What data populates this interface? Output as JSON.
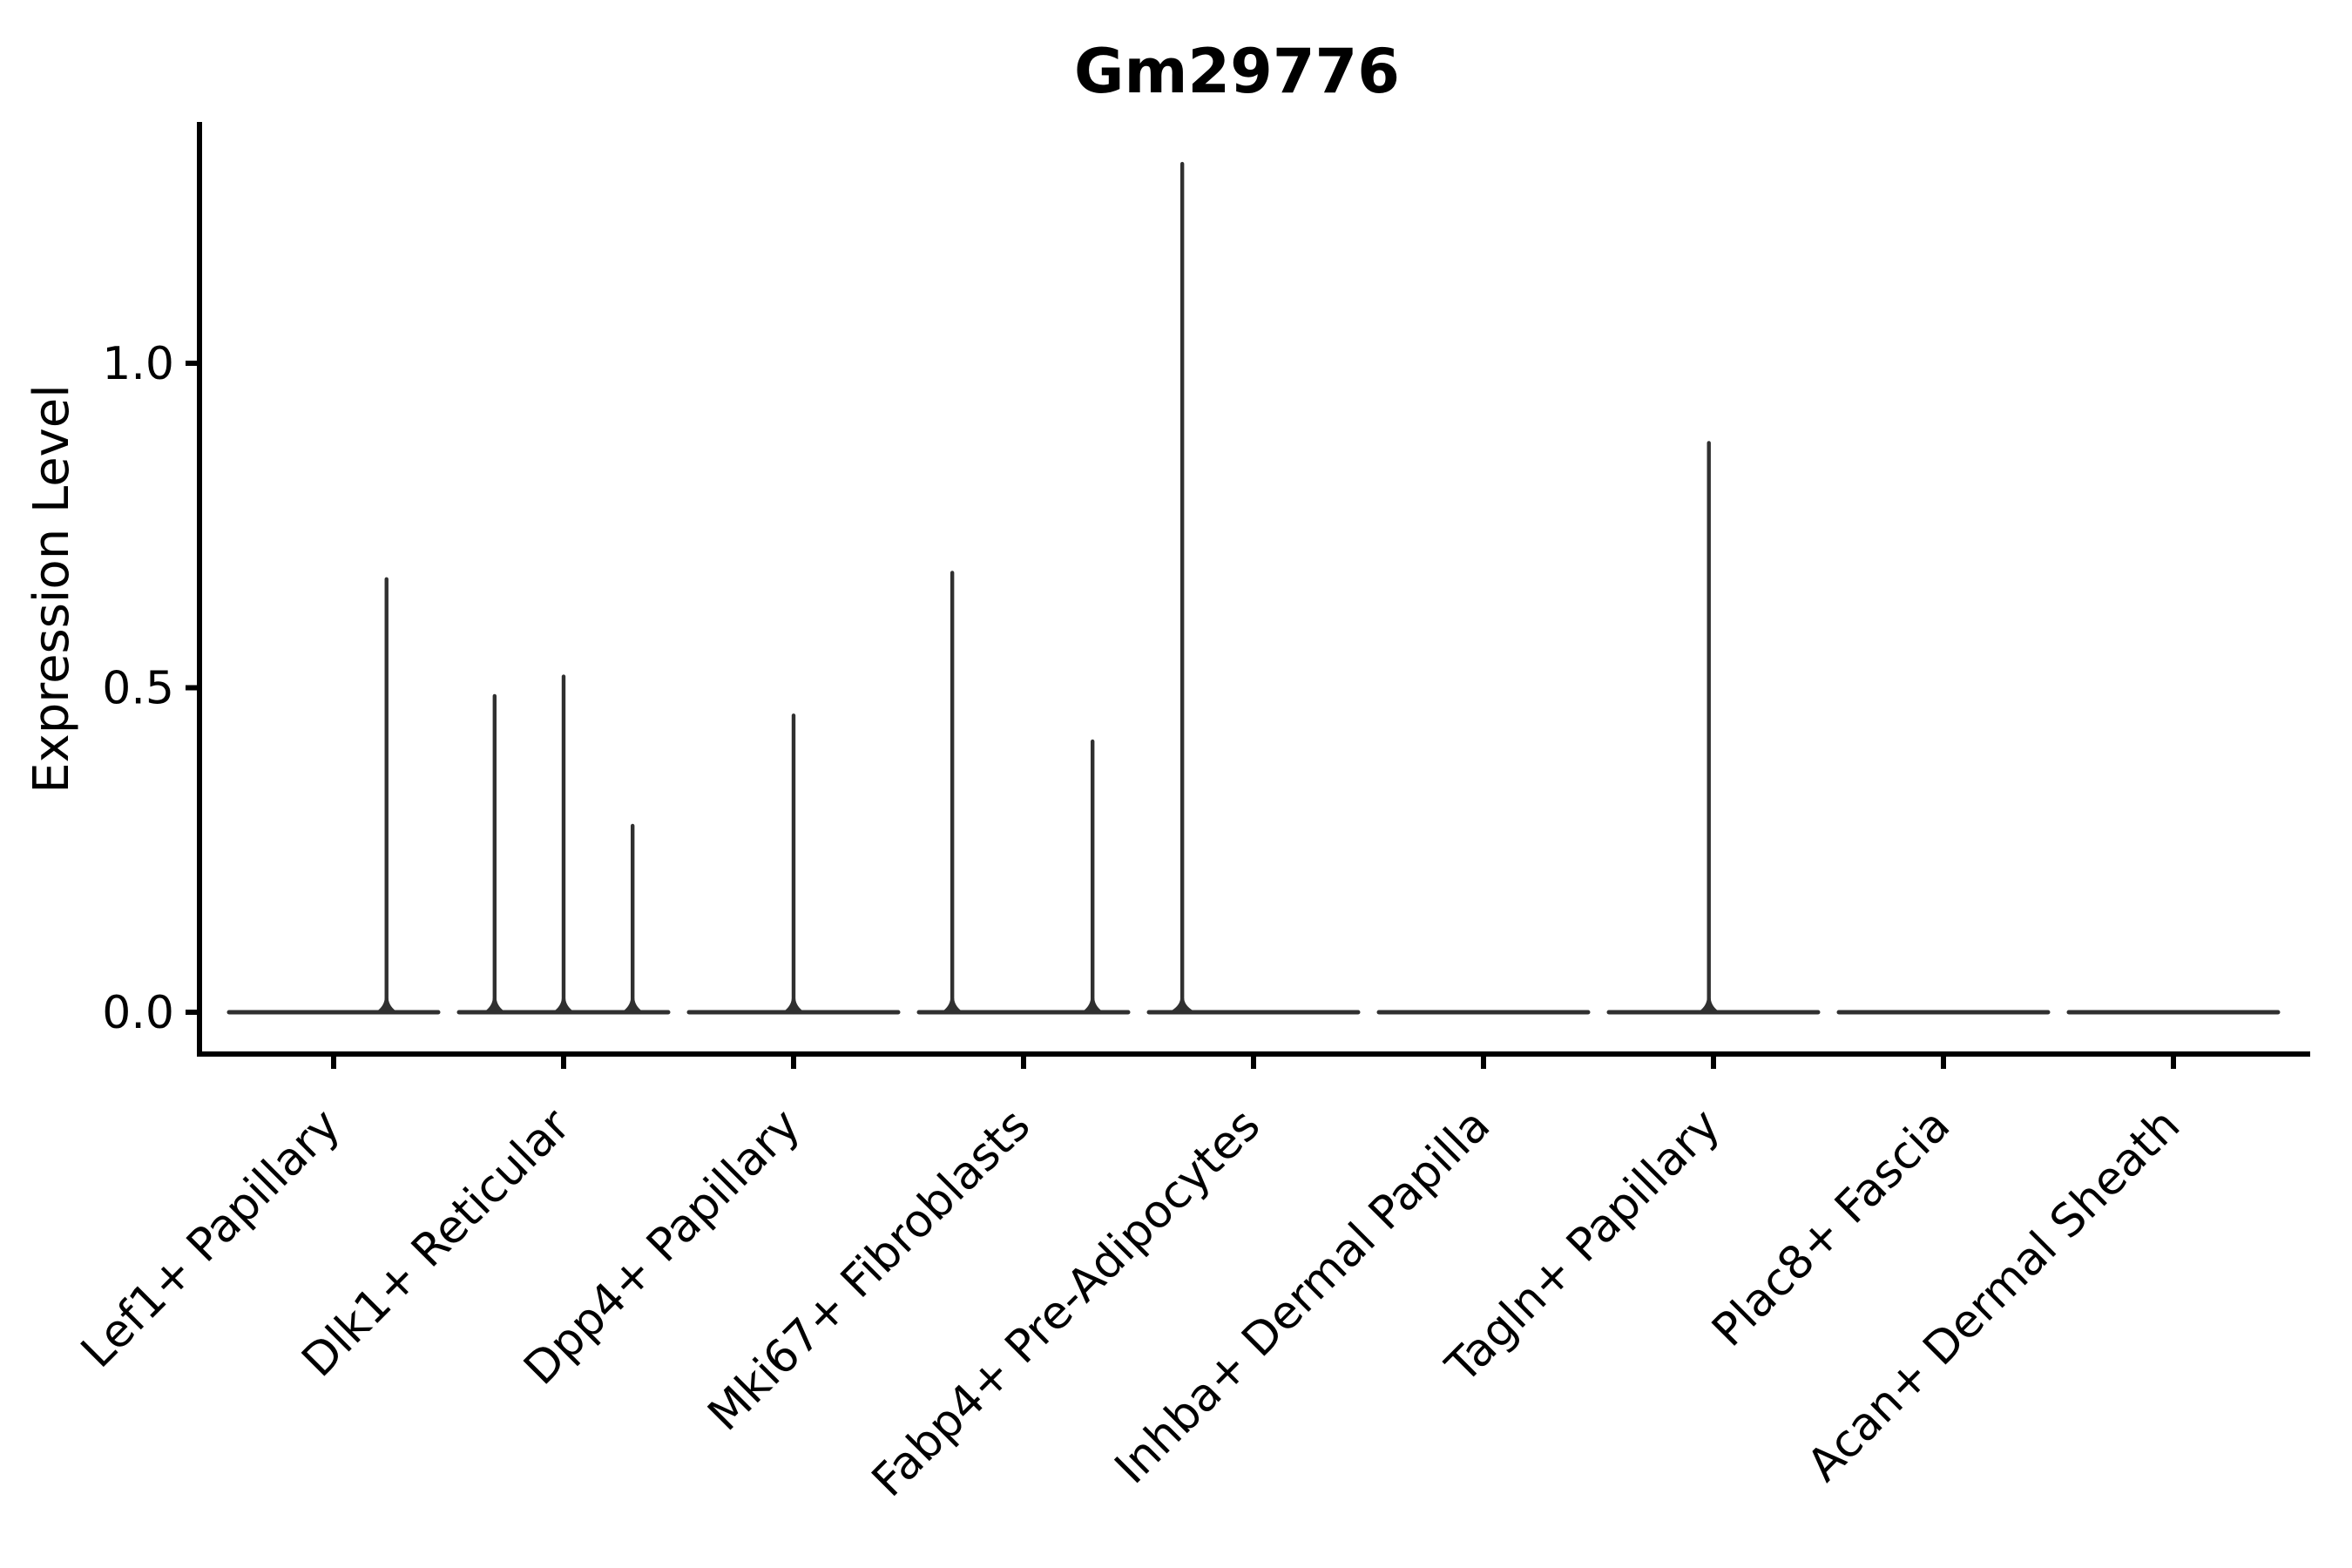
{
  "figure": {
    "background": "#ffffff"
  },
  "chart_data": {
    "type": "violin",
    "title": "Gm29776",
    "xlabel": "",
    "ylabel": "Expression Level",
    "categories": [
      "Lef1+ Papillary",
      "Dlk1+ Reticular",
      "Dpp4+ Papillary",
      "Mki67+ Fibroblasts",
      "Fabp4+ Pre-Adipocytes",
      "Inhba+ Dermal Papilla",
      "Tagln+ Papillary",
      "Plac8+ Fascia",
      "Acan+ Dermal Sheath"
    ],
    "ytick_labels": [
      "0.0",
      "0.5",
      "1.0"
    ],
    "ytick_values": [
      0.0,
      0.5,
      1.0
    ],
    "ylim": [
      -0.064,
      1.372
    ],
    "xtick_rotation": 45,
    "grid": false,
    "legend": null,
    "violin_width": 0.9,
    "series": [
      {
        "category": "Lef1+ Papillary",
        "baseline": 0.0,
        "spikes": [
          {
            "offset": 0.23,
            "value": 0.67
          }
        ]
      },
      {
        "category": "Dlk1+ Reticular",
        "baseline": 0.0,
        "spikes": [
          {
            "offset": -0.3,
            "value": 0.49
          },
          {
            "offset": 0.0,
            "value": 0.52
          },
          {
            "offset": 0.3,
            "value": 0.29
          }
        ]
      },
      {
        "category": "Dpp4+ Papillary",
        "baseline": 0.0,
        "spikes": [
          {
            "offset": 0.0,
            "value": 0.46
          }
        ]
      },
      {
        "category": "Mki67+ Fibroblasts",
        "baseline": 0.0,
        "spikes": [
          {
            "offset": -0.31,
            "value": 0.68
          },
          {
            "offset": 0.3,
            "value": 0.42
          }
        ]
      },
      {
        "category": "Fabp4+ Pre-Adipocytes",
        "baseline": 0.0,
        "spikes": [
          {
            "offset": -0.31,
            "value": 1.31
          }
        ]
      },
      {
        "category": "Inhba+ Dermal Papilla",
        "baseline": 0.0,
        "spikes": []
      },
      {
        "category": "Tagln+ Papillary",
        "baseline": 0.0,
        "spikes": [
          {
            "offset": -0.02,
            "value": 0.88
          }
        ]
      },
      {
        "category": "Plac8+ Fascia",
        "baseline": 0.0,
        "spikes": []
      },
      {
        "category": "Acan+ Dermal Sheath",
        "baseline": 0.0,
        "spikes": []
      }
    ],
    "colors": {
      "violin_line": "#303030",
      "axis": "#000000",
      "text": "#000000",
      "background": "#ffffff"
    }
  }
}
